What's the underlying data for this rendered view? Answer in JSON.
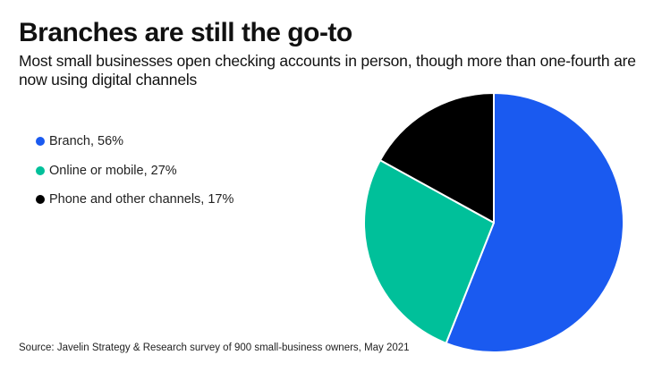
{
  "chart_data": {
    "type": "pie",
    "title": "Branches are still the go-to",
    "subtitle": "Most small businesses open checking accounts in person, though more than one-fourth are now using digital channels",
    "categories": [
      "Branch",
      "Online or mobile",
      "Phone and other channels"
    ],
    "values": [
      56,
      27,
      17
    ],
    "unit": "%",
    "colors": [
      "#1a5af0",
      "#00c09a",
      "#000000"
    ],
    "legend": [
      {
        "label": "Branch, 56%",
        "color": "#1a5af0"
      },
      {
        "label": "Online or mobile, 27%",
        "color": "#00c09a"
      },
      {
        "label": "Phone and other channels, 17%",
        "color": "#000000"
      }
    ],
    "legend_position": "left",
    "start_angle": "12 o'clock, clockwise",
    "source": "Source: Javelin Strategy & Research survey of 900 small-business owners, May 2021"
  }
}
